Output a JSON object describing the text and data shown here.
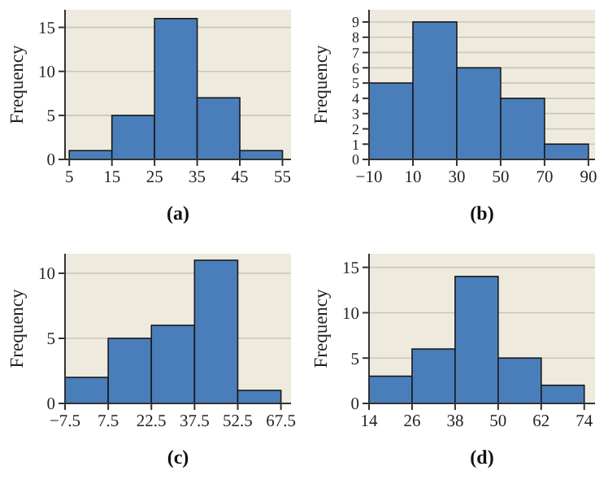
{
  "chart_data": [
    {
      "type": "histogram",
      "title": "(a)",
      "ylabel": "Frequency",
      "bins": [
        5,
        15,
        25,
        35,
        45,
        55
      ],
      "values": [
        1,
        5,
        16,
        7,
        1
      ],
      "color": "#4a7ebb",
      "xlim": [
        4,
        57
      ],
      "xticks": [
        5,
        15,
        25,
        35,
        45,
        55
      ],
      "ylim": [
        0,
        17
      ],
      "yticks": [
        0,
        5,
        10,
        15
      ],
      "grid": "y"
    },
    {
      "type": "histogram",
      "title": "(b)",
      "ylabel": "Frequency",
      "bins": [
        -10,
        10,
        30,
        50,
        70,
        90
      ],
      "values": [
        5,
        9,
        6,
        4,
        1
      ],
      "color": "#4a7ebb",
      "xlim": [
        -10,
        93
      ],
      "xticks": [
        {
          "value": -10,
          "label": "−10"
        },
        10,
        30,
        50,
        70,
        90
      ],
      "ylim": [
        0,
        9.8
      ],
      "yticks": [
        0,
        1,
        2,
        3,
        4,
        5,
        6,
        7,
        8,
        9
      ],
      "grid": "y"
    },
    {
      "type": "histogram",
      "title": "(c)",
      "ylabel": "Frequency",
      "bins": [
        -7.5,
        7.5,
        22.5,
        37.5,
        52.5,
        67.5
      ],
      "values": [
        2,
        5,
        6,
        11,
        1
      ],
      "color": "#4a7ebb",
      "xlim": [
        -7.5,
        71
      ],
      "xticks": [
        {
          "value": -7.5,
          "label": "−7.5"
        },
        7.5,
        22.5,
        37.5,
        52.5,
        67.5
      ],
      "ylim": [
        0,
        11.5
      ],
      "yticks": [
        0,
        5,
        10
      ],
      "grid": "y"
    },
    {
      "type": "histogram",
      "title": "(d)",
      "ylabel": "Frequency",
      "bins": [
        14,
        26,
        38,
        50,
        62,
        74
      ],
      "values": [
        3,
        6,
        14,
        5,
        2
      ],
      "color": "#4a7ebb",
      "xlim": [
        14,
        77
      ],
      "xticks": [
        14,
        26,
        38,
        50,
        62,
        74
      ],
      "ylim": [
        0,
        16.5
      ],
      "yticks": [
        0,
        5,
        10,
        15
      ],
      "grid": "y"
    }
  ]
}
